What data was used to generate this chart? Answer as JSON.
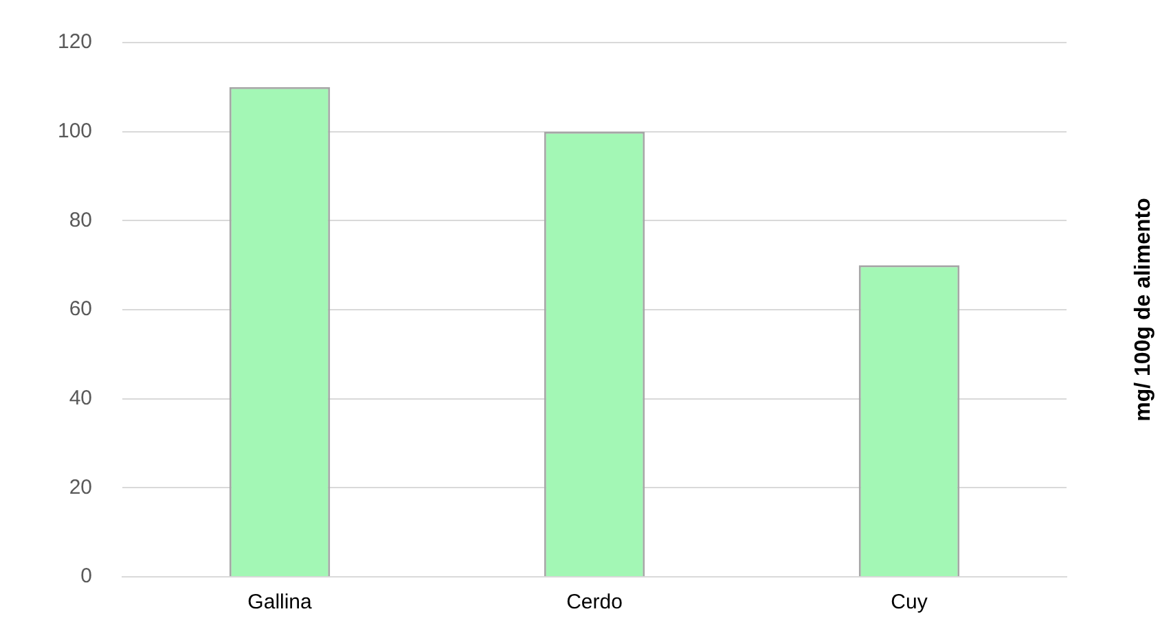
{
  "chart_data": {
    "type": "bar",
    "categories": [
      "Gallina",
      "Cerdo",
      "Cuy"
    ],
    "values": [
      110,
      100,
      70
    ],
    "color": "#a3f7b5",
    "ylabel": "mg/ 100g de alimento",
    "ylim": [
      0,
      120
    ],
    "yticks": [
      0,
      20,
      40,
      60,
      80,
      100,
      120
    ],
    "grid": "y"
  }
}
